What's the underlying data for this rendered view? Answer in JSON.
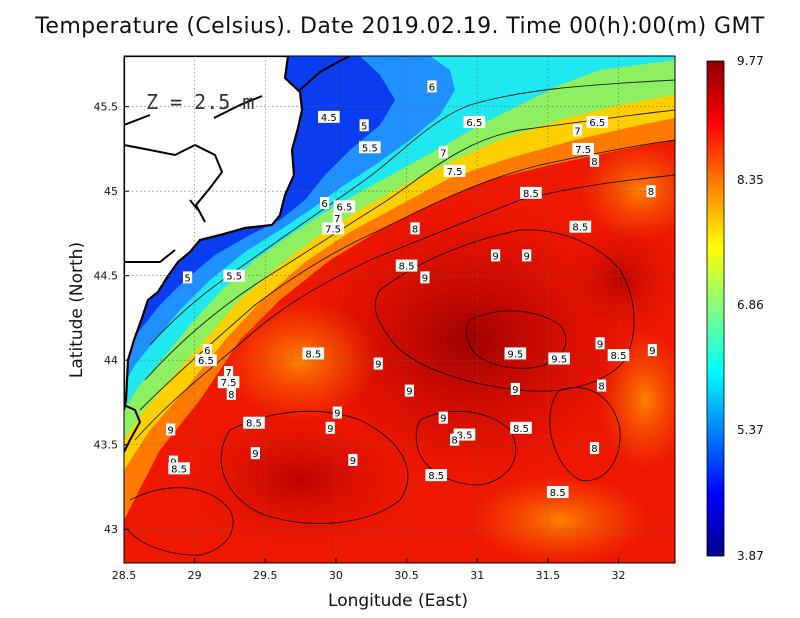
{
  "title": "Temperature (Celsius). Date 2019.02.19. Time 00(h):00(m) GMT",
  "depth_label": "Z = 2.5 m",
  "chart_data": {
    "type": "heatmap",
    "title": "Temperature (Celsius). Date 2019.02.19. Time 00(h):00(m) GMT",
    "xlabel": "Longitude (East)",
    "ylabel": "Latitude (North)",
    "xlim": [
      28.5,
      32.4
    ],
    "ylim": [
      42.8,
      45.8
    ],
    "x_ticks": [
      "28.5",
      "29",
      "29.5",
      "30",
      "30.5",
      "31",
      "31.5",
      "32"
    ],
    "x_tick_values": [
      28.5,
      29,
      29.5,
      30,
      30.5,
      31,
      31.5,
      32
    ],
    "y_ticks": [
      "43",
      "43.5",
      "44",
      "44.5",
      "45",
      "45.5"
    ],
    "y_tick_values": [
      43,
      43.5,
      44,
      44.5,
      45,
      45.5
    ],
    "grid": true,
    "colorbar": {
      "min": 3.87,
      "max": 9.77,
      "labels": [
        "9.77",
        "8.35",
        "6.86",
        "5.37",
        "3.87"
      ],
      "label_values": [
        9.77,
        8.35,
        6.86,
        5.37,
        3.87
      ],
      "colors": [
        "#00008f",
        "#0000ff",
        "#0080ff",
        "#00ffff",
        "#80ff80",
        "#ffff00",
        "#ff8000",
        "#ff0000",
        "#8b0000"
      ]
    },
    "contour_labels": [
      {
        "text": "6",
        "lon": 30.68,
        "lat": 45.62
      },
      {
        "text": "4.5",
        "lon": 29.95,
        "lat": 45.44
      },
      {
        "text": "5",
        "lon": 30.2,
        "lat": 45.39
      },
      {
        "text": "6.5",
        "lon": 30.98,
        "lat": 45.41
      },
      {
        "text": "6.5",
        "lon": 31.85,
        "lat": 45.41
      },
      {
        "text": "7",
        "lon": 31.71,
        "lat": 45.36
      },
      {
        "text": "5.5",
        "lon": 30.24,
        "lat": 45.26
      },
      {
        "text": "7",
        "lon": 30.76,
        "lat": 45.23
      },
      {
        "text": "7.5",
        "lon": 31.75,
        "lat": 45.25
      },
      {
        "text": "8",
        "lon": 31.83,
        "lat": 45.18
      },
      {
        "text": "7.5",
        "lon": 30.84,
        "lat": 45.12
      },
      {
        "text": "8.5",
        "lon": 31.38,
        "lat": 44.99
      },
      {
        "text": "8",
        "lon": 32.23,
        "lat": 45.0
      },
      {
        "text": "6",
        "lon": 29.92,
        "lat": 44.93
      },
      {
        "text": "6.5",
        "lon": 30.06,
        "lat": 44.91
      },
      {
        "text": "7",
        "lon": 30.01,
        "lat": 44.84
      },
      {
        "text": "7.5",
        "lon": 29.98,
        "lat": 44.78
      },
      {
        "text": "8",
        "lon": 30.56,
        "lat": 44.78
      },
      {
        "text": "8.5",
        "lon": 31.73,
        "lat": 44.79
      },
      {
        "text": "9",
        "lon": 31.13,
        "lat": 44.62
      },
      {
        "text": "9",
        "lon": 31.35,
        "lat": 44.62
      },
      {
        "text": "8.5",
        "lon": 30.5,
        "lat": 44.56
      },
      {
        "text": "9",
        "lon": 30.63,
        "lat": 44.49
      },
      {
        "text": "5",
        "lon": 28.95,
        "lat": 44.49
      },
      {
        "text": "5.5",
        "lon": 29.28,
        "lat": 44.5
      },
      {
        "text": "9",
        "lon": 31.87,
        "lat": 44.1
      },
      {
        "text": "9",
        "lon": 32.24,
        "lat": 44.06
      },
      {
        "text": "8.5",
        "lon": 29.84,
        "lat": 44.04
      },
      {
        "text": "6",
        "lon": 29.09,
        "lat": 44.06
      },
      {
        "text": "9.5",
        "lon": 31.27,
        "lat": 44.04
      },
      {
        "text": "9.5",
        "lon": 31.58,
        "lat": 44.01
      },
      {
        "text": "8.5",
        "lon": 32.0,
        "lat": 44.03
      },
      {
        "text": "6.5",
        "lon": 29.08,
        "lat": 44.0
      },
      {
        "text": "9",
        "lon": 30.3,
        "lat": 43.98
      },
      {
        "text": "7",
        "lon": 29.24,
        "lat": 43.93
      },
      {
        "text": "8",
        "lon": 31.88,
        "lat": 43.85
      },
      {
        "text": "7.5",
        "lon": 29.24,
        "lat": 43.87
      },
      {
        "text": "9",
        "lon": 30.52,
        "lat": 43.82
      },
      {
        "text": "9",
        "lon": 31.27,
        "lat": 43.83
      },
      {
        "text": "8",
        "lon": 29.26,
        "lat": 43.8
      },
      {
        "text": "9",
        "lon": 30.01,
        "lat": 43.69
      },
      {
        "text": "9",
        "lon": 30.76,
        "lat": 43.66
      },
      {
        "text": "8.5",
        "lon": 29.42,
        "lat": 43.63
      },
      {
        "text": "9",
        "lon": 29.96,
        "lat": 43.6
      },
      {
        "text": "8.5",
        "lon": 31.31,
        "lat": 43.6
      },
      {
        "text": "9",
        "lon": 28.83,
        "lat": 43.59
      },
      {
        "text": "8.5",
        "lon": 30.91,
        "lat": 43.56
      },
      {
        "text": "8",
        "lon": 30.84,
        "lat": 43.53
      },
      {
        "text": "8",
        "lon": 31.83,
        "lat": 43.48
      },
      {
        "text": "9",
        "lon": 29.43,
        "lat": 43.45
      },
      {
        "text": "9",
        "lon": 28.85,
        "lat": 43.4
      },
      {
        "text": "8.5",
        "lon": 28.89,
        "lat": 43.36
      },
      {
        "text": "9",
        "lon": 30.12,
        "lat": 43.41
      },
      {
        "text": "8.5",
        "lon": 30.71,
        "lat": 43.32
      },
      {
        "text": "8.5",
        "lon": 31.57,
        "lat": 43.22
      }
    ]
  }
}
